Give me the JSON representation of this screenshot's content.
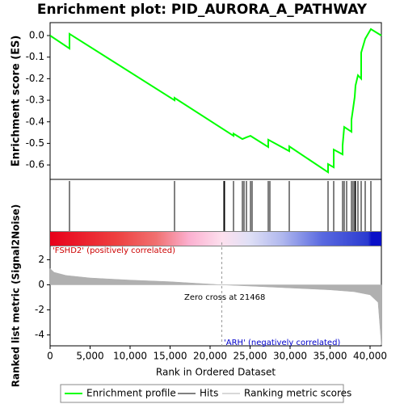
{
  "chart_data": [
    {
      "type": "line",
      "title": "Enrichment plot: PID_AURORA_A_PATHWAY",
      "ylabel": "Enrichment score (ES)",
      "xlim": [
        0,
        41414
      ],
      "ylim": [
        -0.667,
        0.06
      ],
      "yticks": [
        {
          "value": 0,
          "label": "0.0"
        },
        -0.1,
        -0.2,
        -0.3,
        -0.4,
        -0.5,
        -0.6
      ],
      "x": [
        0,
        2424,
        2424,
        15556,
        15556,
        22929,
        22929,
        24040,
        24545,
        25051,
        27273,
        27273,
        29899,
        29899,
        34747,
        34747,
        35455,
        35455,
        36566,
        36566,
        36768,
        37677,
        37677,
        37879,
        38081,
        38182,
        38485,
        38889,
        38889,
        39394,
        40101,
        41414
      ],
      "series": [
        {
          "name": "Enrichment profile",
          "color": "#00ff00",
          "values": [
            0,
            -0.06,
            0.008,
            -0.3,
            -0.289,
            -0.465,
            -0.455,
            -0.48,
            -0.472,
            -0.465,
            -0.517,
            -0.483,
            -0.536,
            -0.514,
            -0.634,
            -0.596,
            -0.611,
            -0.529,
            -0.551,
            -0.51,
            -0.424,
            -0.446,
            -0.39,
            -0.338,
            -0.285,
            -0.232,
            -0.184,
            -0.2,
            -0.079,
            -0.015,
            0.03,
            0
          ]
        }
      ],
      "hits": {
        "name": "Hits",
        "color": "#000000",
        "x": [
          2424,
          15556,
          21717,
          21818,
          22929,
          24040,
          24242,
          24545,
          25051,
          25253,
          27273,
          27475,
          29899,
          34747,
          35455,
          36566,
          36768,
          37071,
          37677,
          37879,
          38081,
          38182,
          38485,
          38889,
          39394,
          40101
        ]
      }
    },
    {
      "type": "area",
      "xlabel": "Rank in Ordered Dataset",
      "ylabel": "Ranked list metric (Signal2Noise)",
      "xlim": [
        0,
        41414
      ],
      "ylim": [
        -4.87,
        3.13
      ],
      "xticks": [
        0,
        {
          "value": 5000,
          "label": "5,000"
        },
        {
          "value": 10000,
          "label": "10,000"
        },
        {
          "value": 15000,
          "label": "15,000"
        },
        {
          "value": 20000,
          "label": "20,000"
        },
        {
          "value": 25000,
          "label": "25,000"
        },
        {
          "value": 30000,
          "label": "30,000"
        },
        {
          "value": 35000,
          "label": "35,000"
        },
        {
          "value": 40000,
          "label": "40,000"
        }
      ],
      "yticks": [
        2,
        0,
        -2,
        -4
      ],
      "x": [
        0,
        500,
        2000,
        5000,
        10000,
        15000,
        21468,
        25000,
        30000,
        35000,
        38000,
        40000,
        41000,
        41414
      ],
      "series": [
        {
          "name": "Ranking metric scores",
          "color": "#b0b0b0",
          "values": [
            1.3,
            1.0,
            0.75,
            0.55,
            0.38,
            0.25,
            0,
            -0.1,
            -0.25,
            -0.4,
            -0.55,
            -0.8,
            -1.4,
            -4.8
          ]
        }
      ],
      "zero_cross": 21468,
      "annotations": [
        "'FSHD2' (positively correlated)",
        "Zero cross at 21468",
        "'ARH' (negatively correlated)"
      ]
    }
  ]
}
